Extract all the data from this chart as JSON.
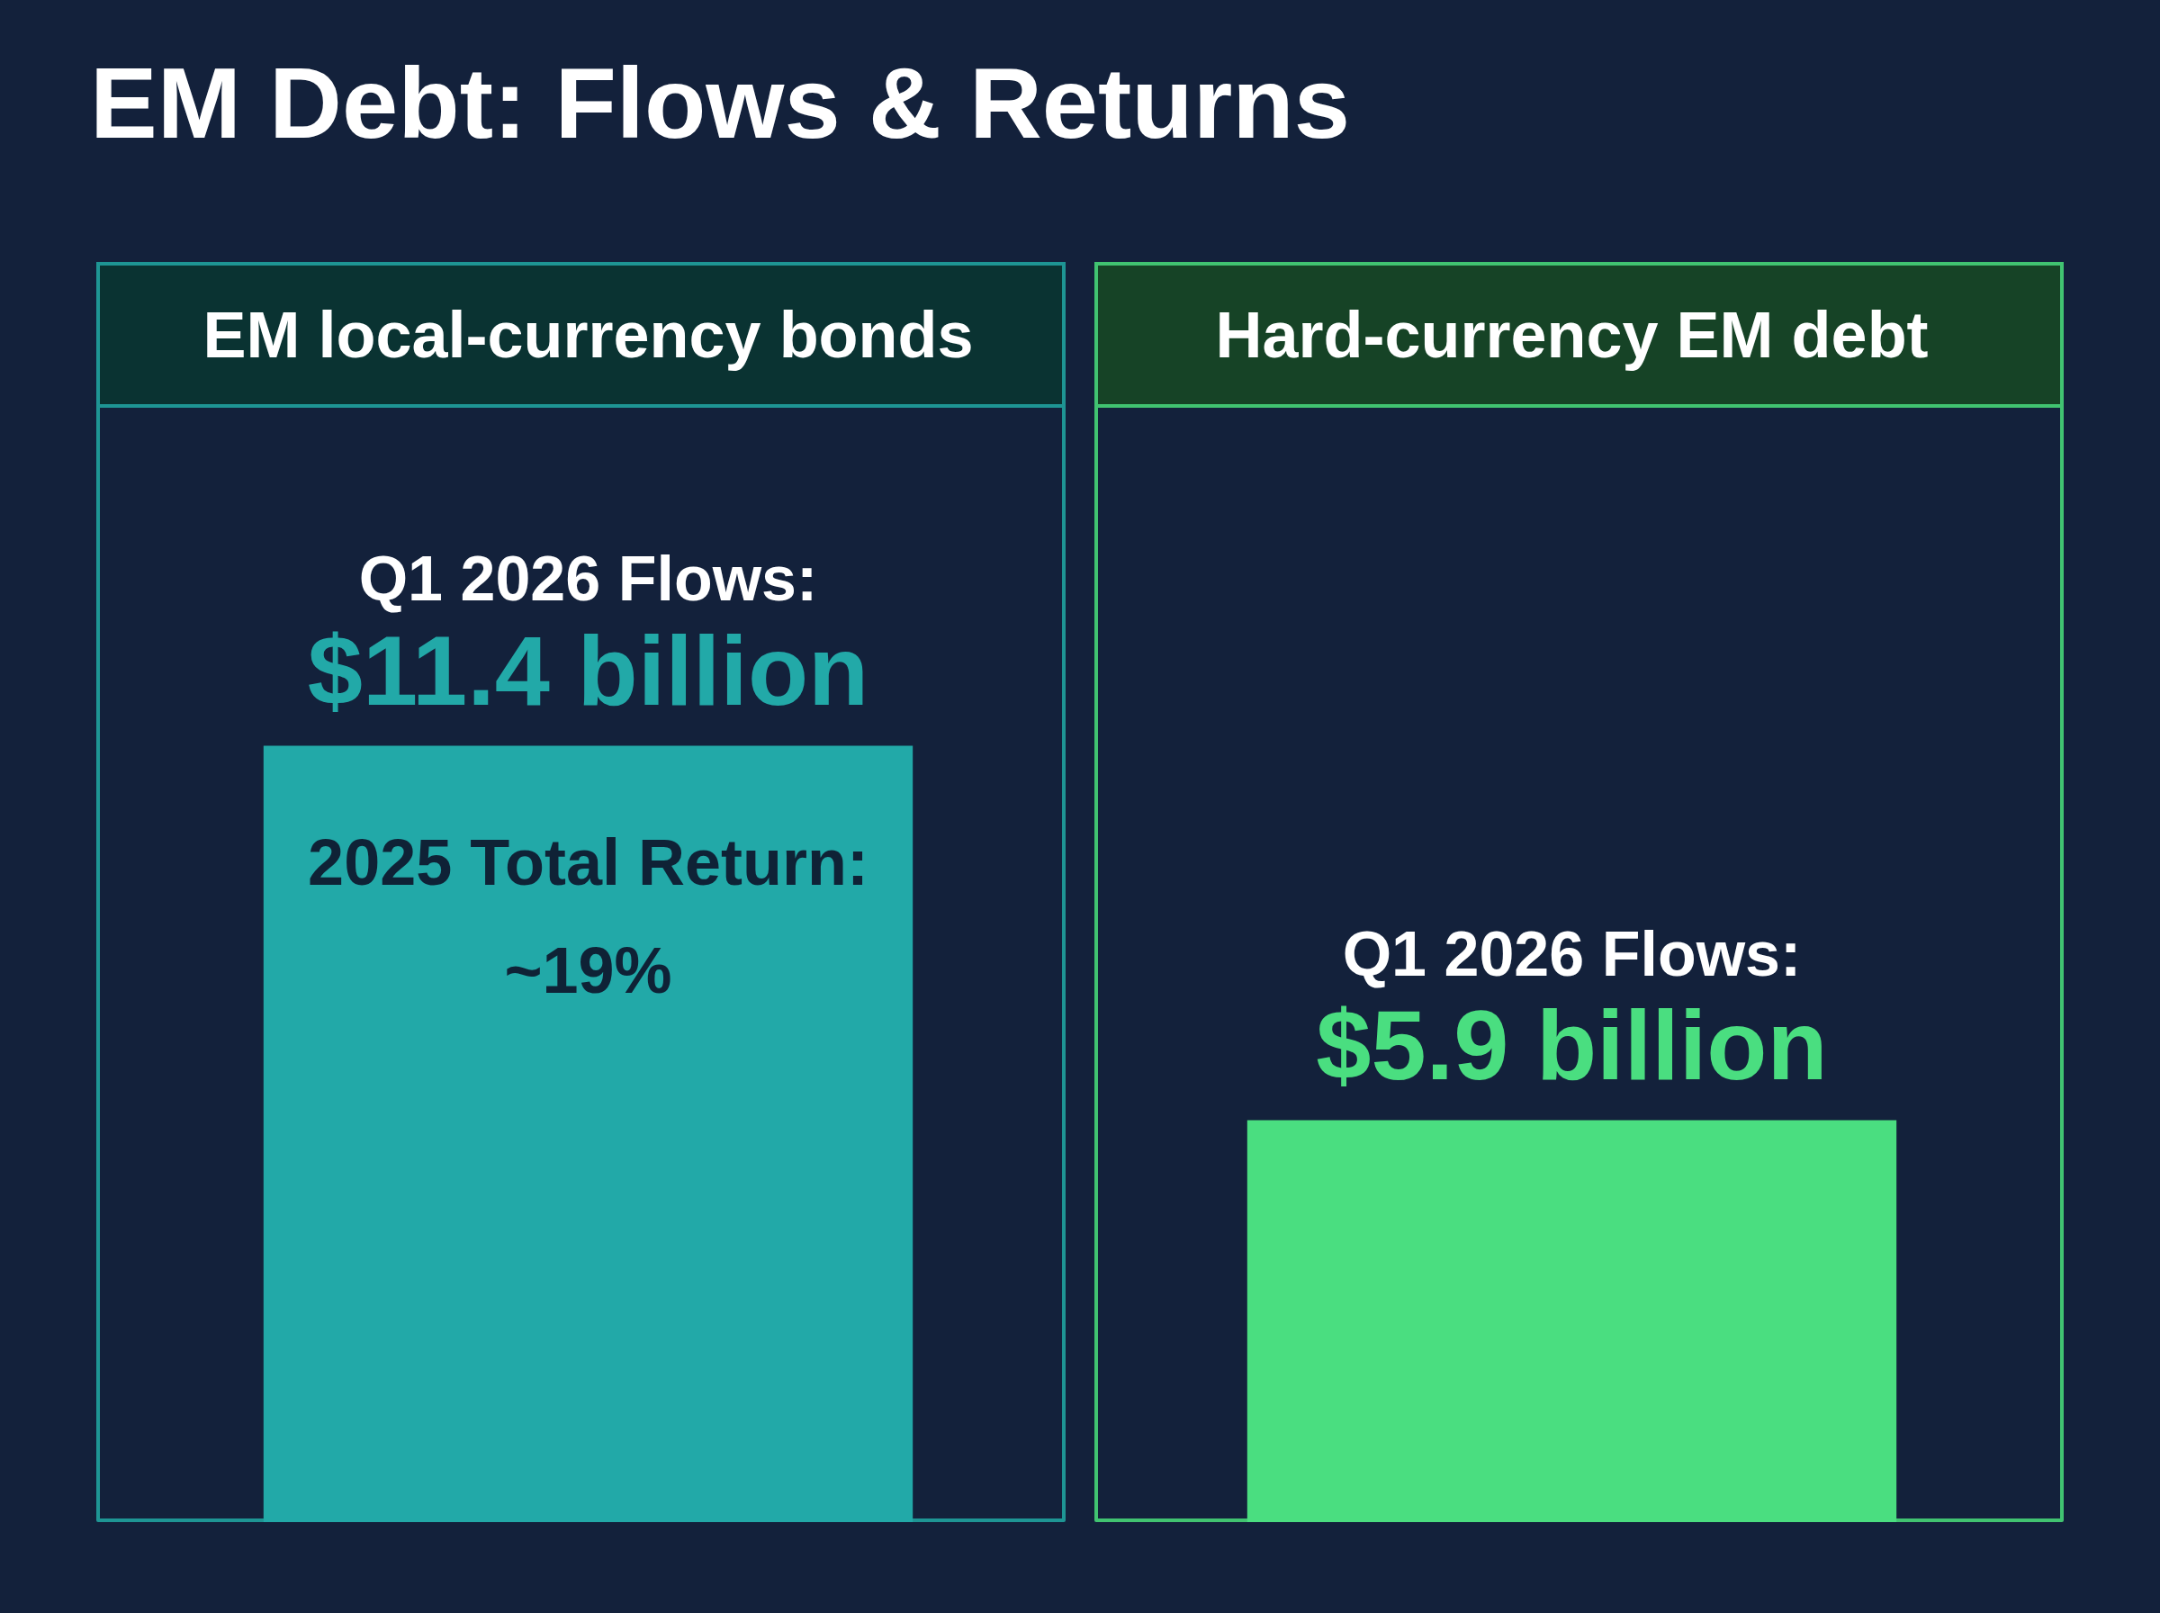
{
  "chart_data": {
    "type": "bar",
    "title": "EM Debt: Flows & Returns",
    "categories": [
      "EM local-currency bonds",
      "Hard-currency EM debt"
    ],
    "values": [
      11.4,
      5.9
    ],
    "colors": [
      "#22a9a8",
      "#4ade80"
    ],
    "value_labels": [
      "$11.4 billion",
      "$5.9 billion"
    ],
    "annotations": [
      "2025 Total Return:\n~19%",
      {
        "text": "Q1 2026 Flows:",
        "x": "EM local-currency bonds",
        "y": 11.4
      },
      {
        "text": "Q1 2026 Flows:",
        "x": "Hard-currency EM debt",
        "y": 5.9
      }
    ],
    "tick_labels": "x"
  }
}
